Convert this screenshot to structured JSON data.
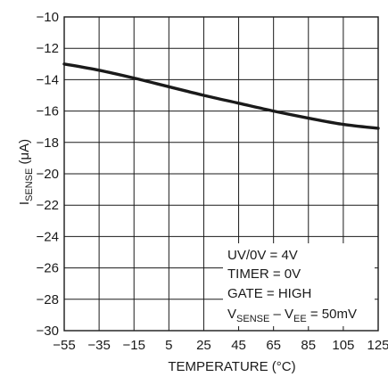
{
  "chart_data": {
    "type": "line",
    "xlabel": "TEMPERATURE (°C)",
    "ylabel_main": "I",
    "ylabel_sub": "SENSE",
    "ylabel_unit": " (μA)",
    "xlim": [
      -55,
      125
    ],
    "ylim": [
      -30,
      -10
    ],
    "xticks": [
      "−55",
      "−35",
      "−15",
      "5",
      "25",
      "45",
      "65",
      "85",
      "105",
      "125"
    ],
    "xtick_values": [
      -55,
      -35,
      -15,
      5,
      25,
      45,
      65,
      85,
      105,
      125
    ],
    "yticks": [
      "−10",
      "−12",
      "−14",
      "−16",
      "−18",
      "−20",
      "−22",
      "−24",
      "−26",
      "−28",
      "−30"
    ],
    "ytick_values": [
      -10,
      -12,
      -14,
      -16,
      -18,
      -20,
      -22,
      -24,
      -26,
      -28,
      -30
    ],
    "grid": true,
    "series": [
      {
        "x": [
          -55,
          -35,
          -15,
          5,
          25,
          45,
          65,
          85,
          105,
          125
        ],
        "y": [
          -13.0,
          -13.4,
          -13.9,
          -14.45,
          -15.0,
          -15.5,
          -16.0,
          -16.45,
          -16.85,
          -17.1
        ]
      }
    ],
    "legend": {
      "line1": "UV/0V = 4V",
      "line2": "TIMER = 0V",
      "line3": "GATE = HIGH",
      "line4_a": "V",
      "line4_a_sub": "SENSE",
      "line4_b": " – V",
      "line4_b_sub": "EE",
      "line4_c": " = 50mV"
    }
  }
}
